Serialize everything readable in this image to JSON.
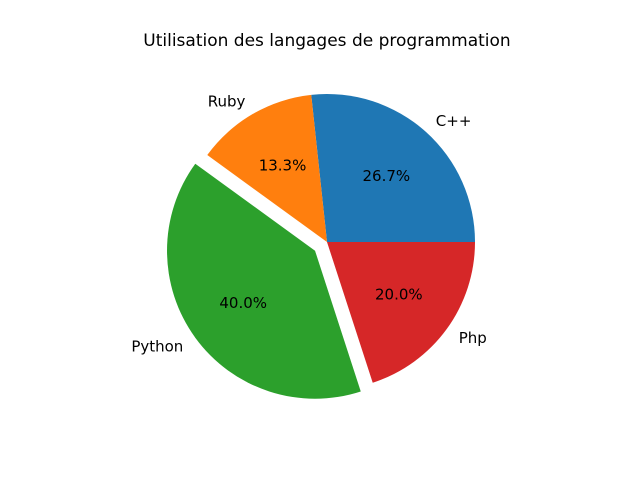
{
  "chart_data": {
    "type": "pie",
    "title": "Utilisation des langages de programmation",
    "slices": [
      {
        "label": "C++",
        "value": 26.7,
        "pct_label": "26.7%",
        "color": "#1f77b4",
        "explode": 0
      },
      {
        "label": "Ruby",
        "value": 13.3,
        "pct_label": "13.3%",
        "color": "#ff7f0e",
        "explode": 0
      },
      {
        "label": "Python",
        "value": 40.0,
        "pct_label": "40.0%",
        "color": "#2ca02c",
        "explode": 0.1
      },
      {
        "label": "Php",
        "value": 20.0,
        "pct_label": "20.0%",
        "color": "#d62728",
        "explode": 0
      }
    ],
    "start_angle": 0,
    "counterclock": true,
    "label_distance": 1.1,
    "pct_distance": 0.6,
    "legend": "none",
    "text_color": "#000000",
    "background": "#ffffff"
  }
}
